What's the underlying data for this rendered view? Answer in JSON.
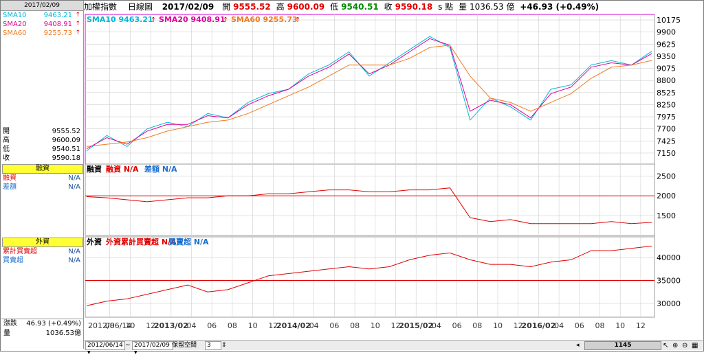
{
  "left_panel": {
    "date": "2017/02/09",
    "sma": [
      {
        "label": "SMA10",
        "value": "9463.21",
        "color": "#00b7d9"
      },
      {
        "label": "SMA20",
        "value": "9408.91",
        "color": "#e0009a"
      },
      {
        "label": "SMA60",
        "value": "9255.73",
        "color": "#f07a20"
      }
    ],
    "ohlc": [
      {
        "label": "開",
        "value": "9555.52"
      },
      {
        "label": "高",
        "value": "9600.09"
      },
      {
        "label": "低",
        "value": "9540.51"
      },
      {
        "label": "收",
        "value": "9590.18"
      }
    ],
    "margin_header": "融資",
    "margin_rows": [
      {
        "label": "融資",
        "value": "N/A",
        "color": "#e00000"
      },
      {
        "label": "差額",
        "value": "N/A",
        "color": "#1a6fd0"
      }
    ],
    "foreign_header": "外資",
    "foreign_rows": [
      {
        "label": "累計買賣超",
        "value": "N/A",
        "color": "#e00000"
      },
      {
        "label": "買賣超",
        "value": "N/A",
        "color": "#1a6fd0"
      }
    ],
    "change_label": "漲跌",
    "change_value": "46.93 (+0.49%)",
    "volume_label": "量",
    "volume_value": "1036.53億"
  },
  "topbar": {
    "name": "加權指數",
    "period": "日線圖",
    "date": "2017/02/09",
    "open_label": "開",
    "open": "9555.52",
    "high_label": "高",
    "high": "9600.09",
    "low_label": "低",
    "low": "9540.51",
    "close_label": "收",
    "close": "9590.18",
    "unit": "s 點",
    "vol_label": "量",
    "vol": "1036.53 億",
    "change": "+46.93 (+0.49%)"
  },
  "price_legend": [
    {
      "text": "SMA10 9463.21",
      "color": "#00b7d9"
    },
    {
      "text": "SMA20 9408.91",
      "color": "#e0009a"
    },
    {
      "text": "SMA60 9255.73",
      "color": "#f07a20"
    }
  ],
  "margin_legend": [
    {
      "text": "融資",
      "color": "#000000"
    },
    {
      "text": "融資 N/A",
      "color": "#e00000"
    },
    {
      "text": "差額 N/A",
      "color": "#1a6fd0"
    }
  ],
  "foreign_legend": [
    {
      "text": "外資",
      "color": "#000000"
    },
    {
      "text": "外資累計買賣超 N/A",
      "color": "#e00000"
    },
    {
      "text": "買賣超 N/A",
      "color": "#1a6fd0"
    }
  ],
  "chart_data": [
    {
      "type": "line",
      "x": [
        "2012/06/14",
        "2012/08",
        "2012/10",
        "2012/12",
        "2013/02",
        "2013/04",
        "2013/06",
        "2013/08",
        "2013/10",
        "2013/12",
        "2014/02",
        "2014/04",
        "2014/06",
        "2014/08",
        "2014/10",
        "2014/12",
        "2015/02",
        "2015/04",
        "2015/06",
        "2015/08",
        "2015/10",
        "2015/12",
        "2016/02",
        "2016/04",
        "2016/06",
        "2016/08",
        "2016/10",
        "2016/12",
        "2017/02/09"
      ],
      "series": [
        {
          "name": "SMA10",
          "values": [
            7200,
            7550,
            7300,
            7700,
            7850,
            7750,
            8050,
            7950,
            8300,
            8500,
            8600,
            8950,
            9150,
            9450,
            8900,
            9200,
            9500,
            9800,
            9550,
            7900,
            8400,
            8200,
            7900,
            8600,
            8700,
            9150,
            9250,
            9150,
            9463.21
          ]
        },
        {
          "name": "SMA20",
          "values": [
            7250,
            7500,
            7350,
            7650,
            7800,
            7800,
            8000,
            7950,
            8250,
            8450,
            8600,
            8900,
            9100,
            9400,
            8950,
            9150,
            9450,
            9750,
            9600,
            8100,
            8350,
            8250,
            7950,
            8500,
            8650,
            9100,
            9200,
            9150,
            9408.91
          ]
        },
        {
          "name": "SMA60",
          "values": [
            7300,
            7350,
            7400,
            7500,
            7650,
            7750,
            7850,
            7900,
            8050,
            8250,
            8450,
            8650,
            8900,
            9150,
            9150,
            9150,
            9300,
            9550,
            9600,
            8900,
            8400,
            8300,
            8100,
            8300,
            8500,
            8850,
            9100,
            9150,
            9255.73
          ]
        }
      ],
      "ylim": [
        6900,
        10300
      ],
      "yticks": [
        7150,
        7425,
        7700,
        7975,
        8250,
        8525,
        8800,
        9075,
        9350,
        9625,
        9900,
        10175
      ]
    },
    {
      "type": "bar",
      "series": [
        {
          "name": "融資",
          "values": [
            1980,
            1950,
            1900,
            1850,
            1900,
            1950,
            1950,
            2000,
            2000,
            2050,
            2050,
            2100,
            2150,
            2150,
            2100,
            2100,
            2150,
            2150,
            2200,
            1450,
            1350,
            1400,
            1300,
            1300,
            1300,
            1300,
            1350,
            1300,
            1330
          ]
        }
      ],
      "ylim": [
        1000,
        2800
      ],
      "yticks": [
        1500,
        2000,
        2500
      ]
    },
    {
      "type": "bar",
      "series": [
        {
          "name": "外資累計買賣超",
          "values": [
            29500,
            30500,
            31000,
            32000,
            33000,
            34000,
            32500,
            33000,
            34500,
            36000,
            36500,
            37000,
            37500,
            38000,
            37500,
            38000,
            39500,
            40500,
            41000,
            39500,
            38500,
            38500,
            38000,
            39000,
            39500,
            41500,
            41500,
            42000,
            42500
          ]
        }
      ],
      "ylim": [
        27000,
        44500
      ],
      "yticks": [
        30000,
        35000,
        40000
      ]
    }
  ],
  "x_axis": [
    "2012/06/14",
    "08",
    "10",
    "12",
    "2013/02",
    "04",
    "06",
    "08",
    "10",
    "12",
    "2014/02",
    "04",
    "06",
    "08",
    "10",
    "12",
    "2015/02",
    "04",
    "06",
    "08",
    "10",
    "12",
    "2016/02",
    "04",
    "06",
    "08",
    "10",
    "12"
  ],
  "bottom_bar": {
    "from": "2012/06/14",
    "sep": "~",
    "to": "2017/02/09",
    "keep_label": "保留空間",
    "keep_value": "3",
    "position": "1145"
  }
}
